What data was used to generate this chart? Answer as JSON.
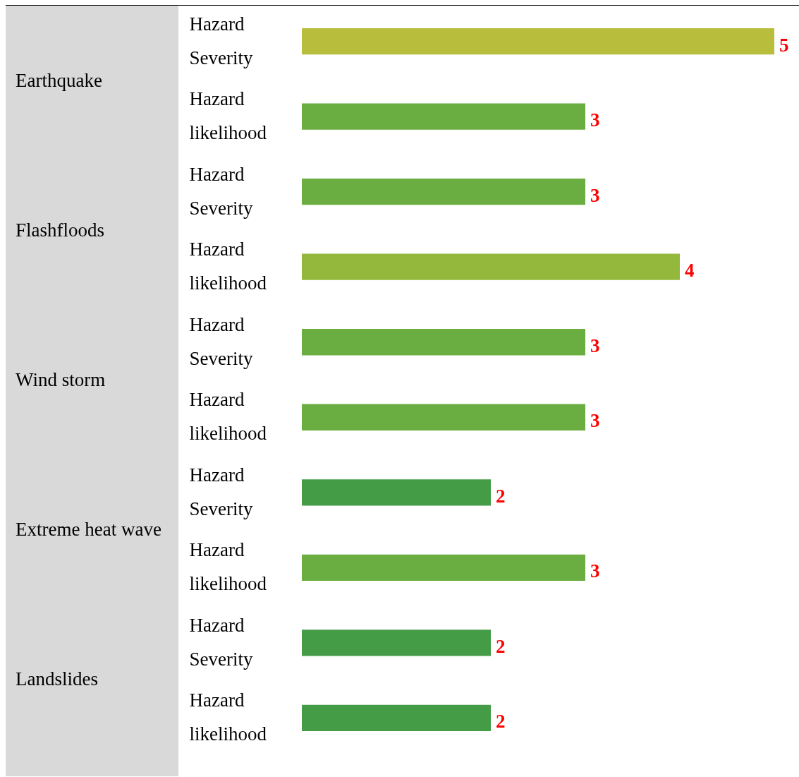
{
  "chart_data": {
    "type": "bar",
    "orientation": "horizontal",
    "data_labels": true,
    "categories": [
      "Hazard Severity",
      "Hazard likelihood",
      "Hazard Severity",
      "Hazard likelihood",
      "Hazard Severity",
      "Hazard likelihood",
      "Hazard Severity",
      "Hazard likelihood",
      "Hazard Severity",
      "Hazard likelihood"
    ],
    "values": [
      5,
      3,
      3,
      4,
      3,
      3,
      2,
      3,
      2,
      2
    ],
    "colors": [
      "#b9bd3c",
      "#6aad40",
      "#6aad40",
      "#93b83b",
      "#6aad40",
      "#6aad40",
      "#459c47",
      "#6aad40",
      "#459c47",
      "#459c47"
    ],
    "annotations": [
      "Earthquake",
      "Flashfloods",
      "Wind storm",
      "Extreme heat wave",
      "Landslides"
    ]
  }
}
